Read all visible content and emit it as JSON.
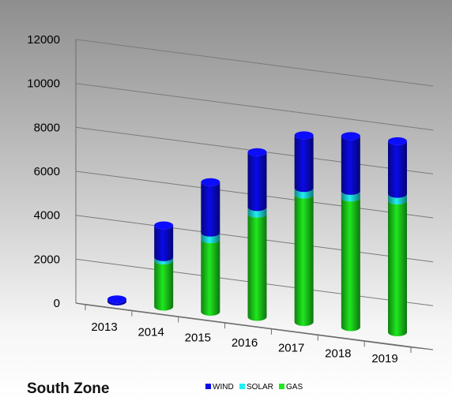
{
  "chart_data": {
    "type": "bar",
    "title": "South Zone",
    "xlabel": "",
    "ylabel": "",
    "ylim": [
      0,
      12000
    ],
    "yticks": [
      0,
      2000,
      4000,
      6000,
      8000,
      10000,
      12000
    ],
    "stacked": true,
    "grid": true,
    "legend_position": "bottom",
    "categories": [
      "2013",
      "2014",
      "2015",
      "2016",
      "2017",
      "2018",
      "2019"
    ],
    "series": [
      {
        "name": "GAS",
        "color": "#1ee81e",
        "values": [
          0,
          2100,
          3300,
          4700,
          5800,
          5900,
          6000
        ]
      },
      {
        "name": "SOLAR",
        "color": "#1ff0f0",
        "values": [
          0,
          150,
          300,
          300,
          300,
          300,
          300
        ]
      },
      {
        "name": "WIND",
        "color": "#0a0ae8",
        "values": [
          100,
          1450,
          2300,
          2500,
          2400,
          2500,
          2400
        ]
      }
    ]
  }
}
